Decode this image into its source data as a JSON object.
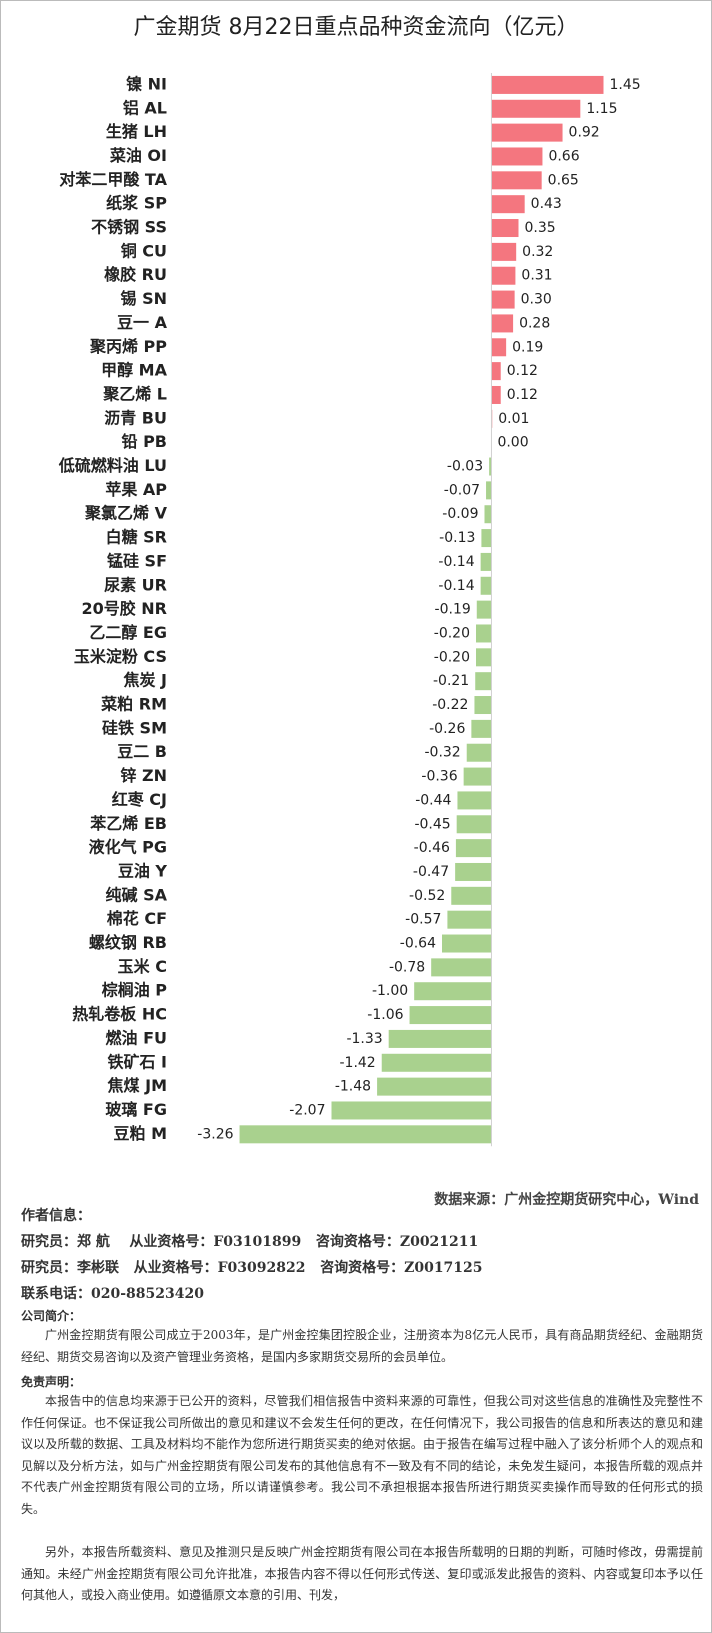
{
  "chart_data": {
    "type": "barh",
    "title": "广金期货 8月22日重点品种资金流向（亿元）",
    "categories": [
      "镍 NI",
      "铝 AL",
      "生猪 LH",
      "菜油 OI",
      "对苯二甲酸 TA",
      "纸浆 SP",
      "不锈钢 SS",
      "铜 CU",
      "橡胶 RU",
      "锡 SN",
      "豆一 A",
      "聚丙烯 PP",
      "甲醇 MA",
      "聚乙烯 L",
      "沥青 BU",
      "铅 PB",
      "低硫燃料油 LU",
      "苹果 AP",
      "聚氯乙烯 V",
      "白糖 SR",
      "锰硅 SF",
      "尿素 UR",
      "20号胶 NR",
      "乙二醇 EG",
      "玉米淀粉 CS",
      "焦炭 J",
      "菜粕 RM",
      "硅铁 SM",
      "豆二 B",
      "锌 ZN",
      "红枣 CJ",
      "苯乙烯 EB",
      "液化气 PG",
      "豆油 Y",
      "纯碱 SA",
      "棉花 CF",
      "螺纹钢 RB",
      "玉米 C",
      "棕榈油 P",
      "热轧卷板 HC",
      "燃油 FU",
      "铁矿石 I",
      "焦煤 JM",
      "玻璃 FG",
      "豆粕 M"
    ],
    "values": [
      1.45,
      1.15,
      0.92,
      0.66,
      0.65,
      0.43,
      0.35,
      0.32,
      0.31,
      0.3,
      0.28,
      0.19,
      0.12,
      0.12,
      0.01,
      0.0,
      -0.03,
      -0.07,
      -0.09,
      -0.13,
      -0.14,
      -0.14,
      -0.19,
      -0.2,
      -0.2,
      -0.21,
      -0.22,
      -0.26,
      -0.32,
      -0.36,
      -0.44,
      -0.45,
      -0.46,
      -0.47,
      -0.52,
      -0.57,
      -0.64,
      -0.78,
      -1.0,
      -1.06,
      -1.33,
      -1.42,
      -1.48,
      -2.07,
      -3.26
    ],
    "value_labels": [
      "1.45",
      "1.15",
      "0.92",
      "0.66",
      "0.65",
      "0.43",
      "0.35",
      "0.32",
      "0.31",
      "0.30",
      "0.28",
      "0.19",
      "0.12",
      "0.12",
      "0.01",
      "0.00",
      "-0.03",
      "-0.07",
      "-0.09",
      "-0.13",
      "-0.14",
      "-0.14",
      "-0.19",
      "-0.20",
      "-0.20",
      "-0.21",
      "-0.22",
      "-0.26",
      "-0.32",
      "-0.36",
      "-0.44",
      "-0.45",
      "-0.46",
      "-0.47",
      "-0.52",
      "-0.57",
      "-0.64",
      "-0.78",
      "-1.00",
      "-1.06",
      "-1.33",
      "-1.42",
      "-1.48",
      "-2.07",
      "-3.26"
    ],
    "positive_color": "#f4767f",
    "negative_color": "#a9d18e",
    "xlim": [
      -3.5,
      2.0
    ]
  },
  "source": "数据来源：广州金控期货研究中心，Wind",
  "author_heading": "作者信息：",
  "researchers": [
    "研究员：郑 航    从业资格号：F03101899   咨询资格号：Z0021211",
    "研究员：李彬联   从业资格号：F03092822   咨询资格号：Z0017125"
  ],
  "phone": "联系电话：020-88523420",
  "company_heading": "公司简介：",
  "company_text": "广州金控期货有限公司成立于2003年，是广州金控集团控股企业，注册资本为8亿元人民币，具有商品期货经纪、金融期货经纪、期货交易咨询以及资产管理业务资格，是国内多家期货交易所的会员单位。",
  "disclaimer_heading": "免责声明：",
  "disclaimer_paragraphs": [
    "本报告中的信息均来源于已公开的资料，尽管我们相信报告中资料来源的可靠性，但我公司对这些信息的准确性及完整性不作任何保证。也不保证我公司所做出的意见和建议不会发生任何的更改，在任何情况下，我公司报告的信息和所表达的意见和建议以及所载的数据、工具及材料均不能作为您所进行期货买卖的绝对依据。由于报告在编写过程中融入了该分析师个人的观点和见解以及分析方法，如与广州金控期货有限公司发布的其他信息有不一致及有不同的结论，未免发生疑问，本报告所载的观点并不代表广州金控期货有限公司的立场，所以请谨慎参考。我公司不承担根据本报告所进行期货买卖操作而导致的任何形式的损失。",
    "另外，本报告所载资料、意见及推测只是反映广州金控期货有限公司在本报告所载明的日期的判断，可随时修改，毋需提前通知。未经广州金控期货有限公司允许批准，本报告内容不得以任何形式传送、复印或派发此报告的资料、内容或复印本予以任何其他人，或投入商业使用。如遵循原文本意的引用、刊发，"
  ]
}
